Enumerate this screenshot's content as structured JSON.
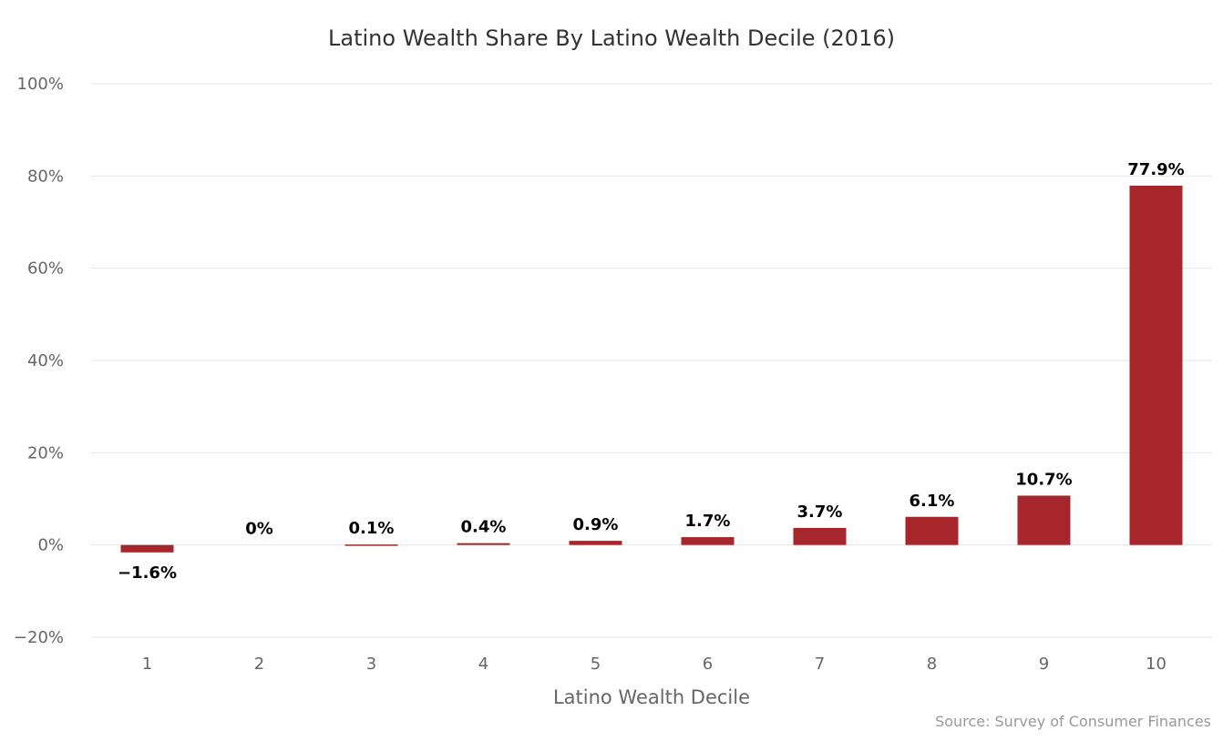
{
  "chart_data": {
    "type": "bar",
    "title": "Latino Wealth Share By Latino Wealth Decile (2016)",
    "xlabel": "Latino Wealth Decile",
    "ylabel": "",
    "categories": [
      "1",
      "2",
      "3",
      "4",
      "5",
      "6",
      "7",
      "8",
      "9",
      "10"
    ],
    "values": [
      -1.6,
      0,
      0.1,
      0.4,
      0.9,
      1.7,
      3.7,
      6.1,
      10.7,
      77.9
    ],
    "data_labels": [
      "−1.6%",
      "0%",
      "0.1%",
      "0.4%",
      "0.9%",
      "1.7%",
      "3.7%",
      "6.1%",
      "10.7%",
      "77.9%"
    ],
    "yticks": [
      -20,
      0,
      20,
      40,
      60,
      80,
      100
    ],
    "ytick_labels": [
      "−20%",
      "0%",
      "20%",
      "40%",
      "60%",
      "80%",
      "100%"
    ],
    "ylim": [
      -20,
      100
    ],
    "grid": true,
    "legend": "none",
    "bar_color": "#a6262b",
    "source": "Source: Survey of Consumer Finances"
  }
}
